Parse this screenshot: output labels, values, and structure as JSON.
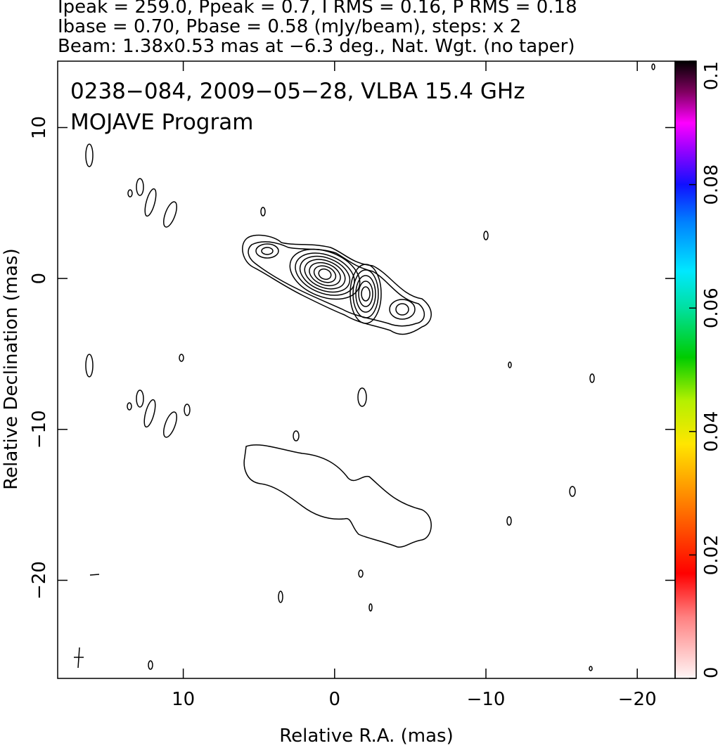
{
  "chart_data": {
    "type": "contour",
    "header_lines": [
      "Ipeak = 259.0, Ppeak = 0.7, I RMS = 0.16, P RMS = 0.18",
      "Ibase = 0.70, Pbase = 0.58 (mJy/beam), steps: x 2",
      "Beam: 1.38x0.53 mas at −6.3 deg., Nat. Wgt. (no taper)"
    ],
    "title": "0238−084, 2009−05−28, VLBA 15.4 GHz",
    "subtitle": "MOJAVE Program",
    "x_label": "Relative R.A. (mas)",
    "y_label": "Relative Declination (mas)",
    "xlim": [
      18.3,
      -22.5
    ],
    "ylim": [
      -26.5,
      14.4
    ],
    "xticks": [
      10,
      0,
      {
        "value": -10,
        "label": "−10"
      },
      {
        "value": -20,
        "label": "−20"
      }
    ],
    "yticks": [
      10,
      0,
      {
        "value": -10,
        "label": "−10"
      },
      {
        "value": -20,
        "label": "−20"
      }
    ],
    "colorbar": {
      "lim": [
        0,
        0.1
      ],
      "ticks": [
        0,
        0.02,
        0.04,
        0.06,
        0.08,
        0.1
      ]
    }
  }
}
